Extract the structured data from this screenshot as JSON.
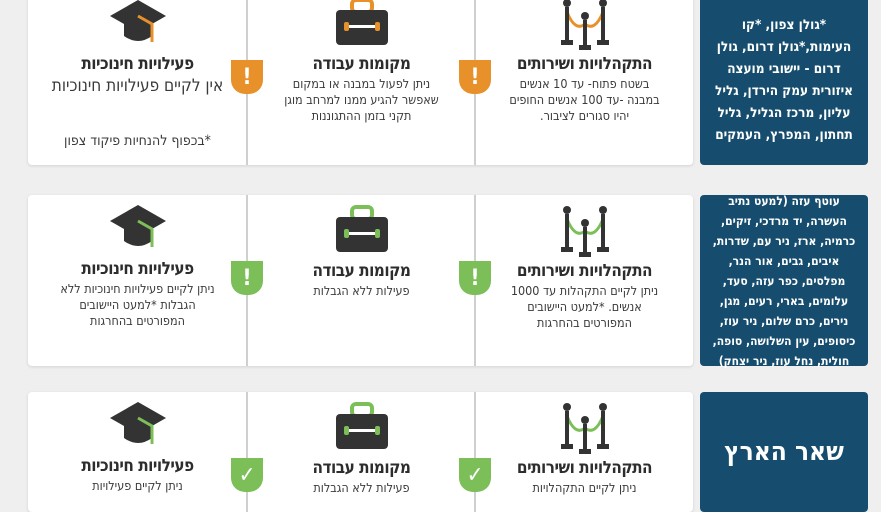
{
  "colors": {
    "region_bg": "#164d6e",
    "warning": "#e8912a",
    "ok": "#7cbf58",
    "icon": "#333333"
  },
  "rows": [
    {
      "region": "*גולן צפון, *קו העימות,*גולן דרום, גולן דרום - יישובי מועצה איזורית עמק הירדן, גליל עליון, מרכז הגליל, גליל תחתון, המפרץ, העמקים",
      "status_icon": "exclamation-icon",
      "accent": "#e8912a",
      "gatherings": {
        "title": "התקהלויות ושירותים",
        "text": "בשטח פתוח- עד 10 אנשים במבנה -עד 100 אנשים החופים יהיו סגורים לציבור."
      },
      "work": {
        "title": "מקומות עבודה",
        "text": "ניתן לפעול במבנה או במקום שאפשר להגיע ממנו למרחב מוגן תקני בזמן ההתגוננות"
      },
      "education": {
        "title": "פעילויות חינוכיות",
        "text": "אין לקיים פעילויות חינוכיות",
        "note": "*בכפוף להנחיות פיקוד צפון"
      }
    },
    {
      "region": "עוטף עזה (למעט נתיב העשרה, יד מרדכי, זיקים, כרמיה, ארז, ניר עם, שדרות, איבים, גבים, אור הנר, מפלסים, כפר עזה, סעד, עלומים, בארי, רעים, מגן, נירים, כרם שלום, ניר עוז, כיסופים, עין השלושה, סופה, חולית, נחל עוז, ניר יצחק)",
      "status_icon": "exclamation-icon",
      "accent": "#7cbf58",
      "gatherings": {
        "title": "התקהלויות ושירותים",
        "text": "ניתן לקיים התקהלות עד 1000 אנשים. *למעט היישובים המפורטים בהחרגות"
      },
      "work": {
        "title": "מקומות עבודה",
        "text": "פעילות ללא הגבלות"
      },
      "education": {
        "title": "פעילויות חינוכיות",
        "text": "ניתן לקיים פעילויות חינוכיות ללא הגבלות *למעט היישובים המפורטים בהחרגות"
      }
    },
    {
      "region": "שאר הארץ",
      "status_icon": "checkmark-icon",
      "accent": "#7cbf58",
      "gatherings": {
        "title": "התקהלויות ושירותים",
        "text": "ניתן לקיים התקהלויות"
      },
      "work": {
        "title": "מקומות עבודה",
        "text": "פעילות ללא הגבלות"
      },
      "education": {
        "title": "פעילויות חינוכיות",
        "text": "ניתן לקיים פעילויות"
      }
    }
  ],
  "badges": {
    "warning": "!",
    "ok": "✓"
  }
}
